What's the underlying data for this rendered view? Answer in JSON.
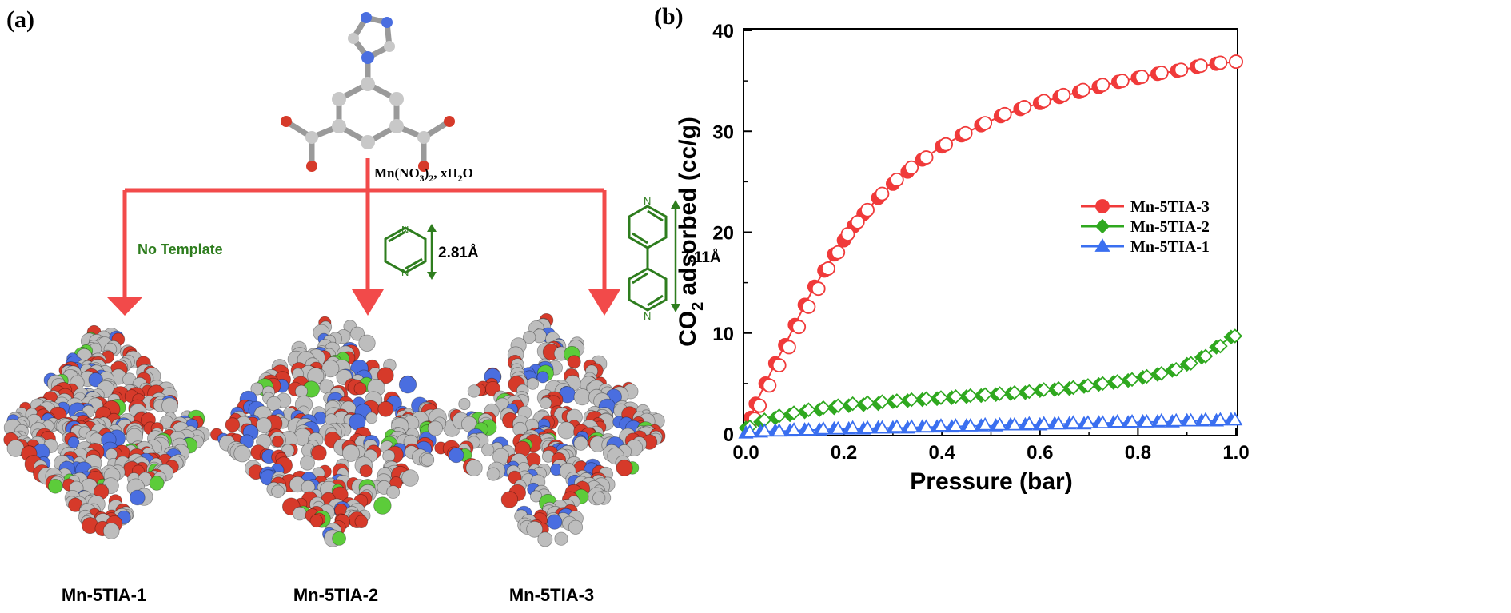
{
  "panel_a": {
    "label": "(a)",
    "reagent": {
      "prefix": "Mn(NO",
      "sub1": "3",
      "mid": ")",
      "sub2": "2",
      "tail": ", xH",
      "sub3": "2",
      "end": "O"
    },
    "branch_left_label": "No Template",
    "branch_mid_dimension": "2.81Å",
    "branch_right_dimension": "7.11Å",
    "products": [
      "Mn-5TIA-1",
      "Mn-5TIA-2",
      "Mn-5TIA-3"
    ],
    "colors": {
      "arrow": "#f24a4a",
      "template": "#2e7d1e",
      "oxygen": "#d63a2a",
      "carbon": "#bdbdbd",
      "nitrogen": "#4a6ee0",
      "metal": "#5ccc3a"
    }
  },
  "panel_b": {
    "label": "(b)"
  },
  "chart_data": {
    "type": "scatter",
    "xlabel": "Pressure (bar)",
    "ylabel_parts": [
      "CO",
      "2",
      " adsorbed (cc/g)"
    ],
    "xlim": [
      0,
      1.0
    ],
    "ylim": [
      0,
      40
    ],
    "x_ticks": [
      "0.0",
      "0.2",
      "0.4",
      "0.6",
      "0.8",
      "1.0"
    ],
    "y_ticks": [
      "0",
      "10",
      "20",
      "30",
      "40"
    ],
    "grid": false,
    "legend_position": "center-right",
    "series": [
      {
        "name": "Mn-5TIA-3",
        "marker": "circle",
        "color": "#f03a3a",
        "x": [
          0.01,
          0.02,
          0.04,
          0.06,
          0.08,
          0.1,
          0.12,
          0.14,
          0.16,
          0.18,
          0.2,
          0.22,
          0.24,
          0.27,
          0.3,
          0.33,
          0.36,
          0.4,
          0.44,
          0.48,
          0.52,
          0.56,
          0.6,
          0.64,
          0.68,
          0.72,
          0.76,
          0.8,
          0.84,
          0.88,
          0.92,
          0.96,
          1.0
        ],
        "adsorption": [
          1.6,
          3.0,
          5.0,
          7.0,
          8.8,
          10.8,
          12.8,
          14.6,
          16.2,
          17.8,
          19.2,
          20.6,
          21.8,
          23.4,
          24.8,
          26.0,
          27.2,
          28.5,
          29.6,
          30.6,
          31.5,
          32.2,
          32.8,
          33.4,
          33.9,
          34.4,
          34.9,
          35.3,
          35.7,
          36.0,
          36.4,
          36.7,
          36.9
        ],
        "desorption": [
          1.5,
          2.8,
          4.8,
          6.8,
          8.6,
          10.6,
          12.6,
          14.4,
          16.4,
          18.0,
          19.8,
          21.0,
          22.2,
          23.8,
          25.2,
          26.4,
          27.4,
          28.7,
          29.8,
          30.8,
          31.7,
          32.4,
          33.0,
          33.6,
          34.1,
          34.6,
          35.0,
          35.4,
          35.8,
          36.1,
          36.5,
          36.8,
          36.9
        ]
      },
      {
        "name": "Mn-5TIA-2",
        "marker": "diamond",
        "color": "#2fa81f",
        "x": [
          0.0,
          0.03,
          0.06,
          0.09,
          0.12,
          0.15,
          0.18,
          0.21,
          0.24,
          0.27,
          0.3,
          0.33,
          0.36,
          0.39,
          0.42,
          0.45,
          0.48,
          0.51,
          0.54,
          0.57,
          0.6,
          0.63,
          0.66,
          0.69,
          0.72,
          0.75,
          0.78,
          0.81,
          0.84,
          0.87,
          0.9,
          0.93,
          0.96,
          0.99
        ],
        "adsorption": [
          0.6,
          1.2,
          1.6,
          1.9,
          2.2,
          2.4,
          2.6,
          2.8,
          2.9,
          3.0,
          3.2,
          3.3,
          3.4,
          3.5,
          3.6,
          3.7,
          3.8,
          3.9,
          4.0,
          4.1,
          4.3,
          4.4,
          4.5,
          4.7,
          4.9,
          5.1,
          5.3,
          5.6,
          5.9,
          6.3,
          6.9,
          7.6,
          8.6,
          9.6
        ],
        "desorption": [
          0.7,
          1.4,
          1.8,
          2.1,
          2.4,
          2.6,
          2.8,
          3.0,
          3.1,
          3.2,
          3.3,
          3.4,
          3.5,
          3.6,
          3.7,
          3.8,
          3.9,
          4.0,
          4.1,
          4.2,
          4.4,
          4.5,
          4.6,
          4.8,
          5.0,
          5.2,
          5.4,
          5.7,
          6.0,
          6.4,
          7.0,
          7.7,
          8.7,
          9.7
        ]
      },
      {
        "name": "Mn-5TIA-1",
        "marker": "triangle",
        "color": "#3a6ff0",
        "x": [
          0.0,
          0.03,
          0.06,
          0.09,
          0.12,
          0.15,
          0.18,
          0.21,
          0.24,
          0.27,
          0.3,
          0.33,
          0.36,
          0.39,
          0.42,
          0.45,
          0.48,
          0.51,
          0.54,
          0.57,
          0.6,
          0.63,
          0.66,
          0.69,
          0.72,
          0.75,
          0.78,
          0.81,
          0.84,
          0.87,
          0.9,
          0.93,
          0.96,
          0.99
        ],
        "adsorption": [
          0.1,
          0.2,
          0.3,
          0.3,
          0.4,
          0.4,
          0.5,
          0.5,
          0.5,
          0.6,
          0.6,
          0.6,
          0.7,
          0.7,
          0.7,
          0.8,
          0.8,
          0.8,
          0.9,
          0.9,
          0.9,
          1.0,
          1.0,
          1.0,
          1.1,
          1.1,
          1.1,
          1.2,
          1.2,
          1.2,
          1.3,
          1.3,
          1.3,
          1.4
        ],
        "desorption": [
          0.2,
          0.3,
          0.3,
          0.4,
          0.4,
          0.5,
          0.5,
          0.6,
          0.6,
          0.6,
          0.7,
          0.7,
          0.7,
          0.8,
          0.8,
          0.8,
          0.9,
          0.9,
          0.9,
          1.0,
          1.0,
          1.0,
          1.1,
          1.1,
          1.1,
          1.2,
          1.2,
          1.2,
          1.3,
          1.3,
          1.3,
          1.4,
          1.4,
          1.4
        ]
      }
    ]
  }
}
